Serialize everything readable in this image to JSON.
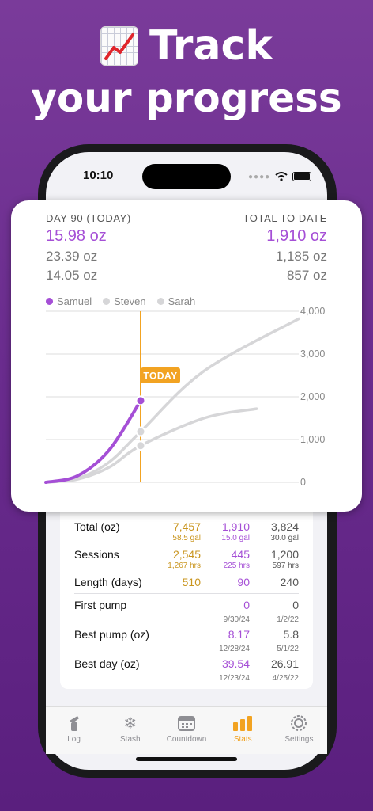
{
  "headline": {
    "line1": "Track",
    "line2": "your progress",
    "emoji_icon": "chart-increasing-icon"
  },
  "status_bar": {
    "time": "10:10"
  },
  "chart_card": {
    "left_header": "DAY 90 (TODAY)",
    "right_header": "TOTAL TO DATE",
    "left_values": [
      "15.98 oz",
      "23.39 oz",
      "14.05 oz"
    ],
    "right_values": [
      "1,910 oz",
      "1,185 oz",
      "857 oz"
    ],
    "today_label": "TODAY"
  },
  "chart_data": {
    "type": "line",
    "series": [
      {
        "name": "Samuel",
        "color": "#a54fd6",
        "x": [
          0,
          30,
          60,
          90
        ],
        "y": [
          0,
          150,
          750,
          1910
        ]
      },
      {
        "name": "Steven",
        "color": "#d6d6d8",
        "x": [
          0,
          30,
          60,
          90,
          150,
          240
        ],
        "y": [
          0,
          90,
          470,
          1185,
          2600,
          3824
        ]
      },
      {
        "name": "Sarah",
        "color": "#d6d6d8",
        "x": [
          0,
          30,
          60,
          90,
          150,
          200
        ],
        "y": [
          0,
          70,
          350,
          857,
          1500,
          1720
        ]
      }
    ],
    "today_x": 90,
    "xlim": [
      0,
      240
    ],
    "ylim": [
      0,
      4000
    ],
    "y_ticks": [
      "0",
      "1,000",
      "2,000",
      "3,000",
      "4,000"
    ],
    "grid": true,
    "legend_position": "top-left"
  },
  "stats": {
    "rows": [
      {
        "label": "Total (oz)",
        "c1": "7,457",
        "c1_sub": "58.5 gal",
        "c2": "1,910",
        "c2_sub": "15.0 gal",
        "c3": "3,824",
        "c3_sub": "30.0 gal"
      },
      {
        "label": "Sessions",
        "c1": "2,545",
        "c1_sub": "1,267 hrs",
        "c2": "445",
        "c2_sub": "225 hrs",
        "c3": "1,200",
        "c3_sub": "597 hrs"
      },
      {
        "label": "Length (days)",
        "c1": "510",
        "c2": "90",
        "c3": "240"
      },
      {
        "label": "First pump",
        "c2": "0",
        "c2_sub": "9/30/24",
        "c3": "0",
        "c3_sub": "1/2/22"
      },
      {
        "label": "Best pump (oz)",
        "c2": "8.17",
        "c2_sub": "12/28/24",
        "c3": "5.8",
        "c3_sub": "5/1/22"
      },
      {
        "label": "Best day (oz)",
        "c2": "39.54",
        "c2_sub": "12/23/24",
        "c3": "26.91",
        "c3_sub": "4/25/22"
      }
    ]
  },
  "tabs": [
    {
      "label": "Log",
      "icon": "bottle-icon"
    },
    {
      "label": "Stash",
      "icon": "snowflake-icon"
    },
    {
      "label": "Countdown",
      "icon": "calendar-icon"
    },
    {
      "label": "Stats",
      "icon": "bar-chart-icon",
      "active": true
    },
    {
      "label": "Settings",
      "icon": "gear-icon"
    }
  ],
  "colors": {
    "accent_purple": "#a54fd6",
    "accent_orange": "#f2a322",
    "gold": "#c9951e",
    "background": "#6a2c8e"
  }
}
